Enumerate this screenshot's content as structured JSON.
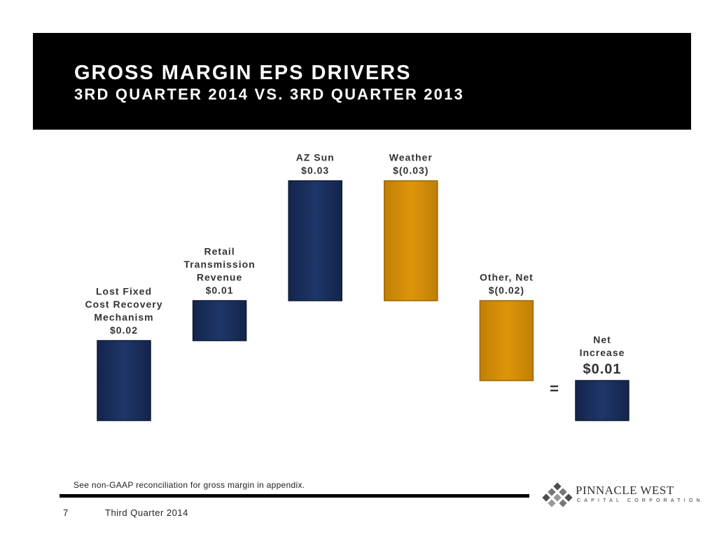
{
  "header": {
    "title": "GROSS MARGIN EPS DRIVERS",
    "subtitle": "3RD QUARTER 2014 VS. 3RD QUARTER 2013"
  },
  "colors": {
    "increase": "#1c3264",
    "decrease": "#d79009",
    "header_bg": "#000000"
  },
  "chart_data": {
    "type": "bar",
    "subtype": "waterfall",
    "unit": "EPS ($)",
    "categories": [
      "Lost Fixed Cost Recovery Mechanism",
      "Retail Transmission Revenue",
      "AZ Sun",
      "Weather",
      "Other, Net",
      "Net Increase"
    ],
    "values": [
      0.02,
      0.01,
      0.03,
      -0.03,
      -0.02,
      0.01
    ],
    "bars": [
      {
        "label_lines": [
          "Lost Fixed",
          "Cost Recovery",
          "Mechanism"
        ],
        "value_text": "$0.02",
        "value": 0.02,
        "kind": "increase"
      },
      {
        "label_lines": [
          "Retail",
          "Transmission",
          "Revenue"
        ],
        "value_text": "$0.01",
        "value": 0.01,
        "kind": "increase"
      },
      {
        "label_lines": [
          "AZ Sun"
        ],
        "value_text": "$0.03",
        "value": 0.03,
        "kind": "increase"
      },
      {
        "label_lines": [
          "Weather"
        ],
        "value_text": "$(0.03)",
        "value": -0.03,
        "kind": "decrease"
      },
      {
        "label_lines": [
          "Other, Net"
        ],
        "value_text": "$(0.02)",
        "value": -0.02,
        "kind": "decrease"
      },
      {
        "label_lines": [
          "Net",
          "Increase"
        ],
        "value_text": "$0.01",
        "value": 0.01,
        "kind": "total"
      }
    ],
    "equals_sign": "=",
    "title": "GROSS MARGIN EPS DRIVERS",
    "xlabel": "",
    "ylabel": ""
  },
  "note": "See non-GAAP reconciliation for gross margin in appendix.",
  "footer": {
    "page": "7",
    "text": "Third Quarter 2014"
  },
  "logo": {
    "name": "PINNACLE WEST",
    "sub": "CAPITAL CORPORATION",
    "text": "PINNACLE WEST CAPITAL CORPORATION"
  }
}
